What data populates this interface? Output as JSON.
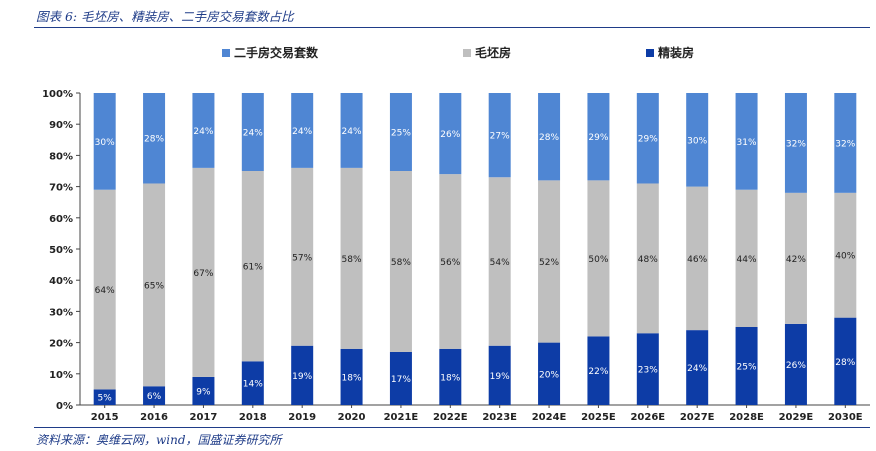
{
  "figure": {
    "title": "图表 6: 毛坯房、精装房、二手房交易套数占比",
    "source": "资料来源：奥维云网，wind，国盛证券研究所"
  },
  "colors": {
    "second_hand": "#4f86d3",
    "rough": "#bfbfbf",
    "decorated": "#0d3ca6",
    "axis": "#444444"
  },
  "chart_data": {
    "type": "bar",
    "stacked": true,
    "percent": true,
    "categories": [
      "2015",
      "2016",
      "2017",
      "2018",
      "2019",
      "2020",
      "2021E",
      "2022E",
      "2023E",
      "2024E",
      "2025E",
      "2026E",
      "2027E",
      "2028E",
      "2029E",
      "2030E"
    ],
    "ylim": [
      0,
      100
    ],
    "yticks": [
      "0%",
      "10%",
      "20%",
      "30%",
      "40%",
      "50%",
      "60%",
      "70%",
      "80%",
      "90%",
      "100%"
    ],
    "legend_position": "top",
    "series": [
      {
        "key": "decorated",
        "name": "精装房",
        "values": [
          5,
          6,
          9,
          14,
          19,
          18,
          17,
          18,
          19,
          20,
          22,
          23,
          24,
          25,
          26,
          28
        ],
        "labels": [
          "5%",
          "6%",
          "9%",
          "14%",
          "19%",
          "18%",
          "17%",
          "18%",
          "19%",
          "20%",
          "22%",
          "23%",
          "24%",
          "25%",
          "26%",
          "28%"
        ]
      },
      {
        "key": "rough",
        "name": "毛坯房",
        "values": [
          64,
          65,
          67,
          61,
          57,
          58,
          58,
          56,
          54,
          52,
          50,
          48,
          46,
          44,
          42,
          40
        ],
        "labels": [
          "64%",
          "65%",
          "67%",
          "61%",
          "57%",
          "58%",
          "58%",
          "56%",
          "54%",
          "52%",
          "50%",
          "48%",
          "46%",
          "44%",
          "42%",
          "40%"
        ]
      },
      {
        "key": "second_hand",
        "name": "二手房交易套数",
        "values": [
          30,
          28,
          24,
          24,
          24,
          24,
          25,
          26,
          27,
          28,
          29,
          29,
          30,
          31,
          32,
          32
        ],
        "labels": [
          "30%",
          "28%",
          "24%",
          "24%",
          "24%",
          "24%",
          "25%",
          "26%",
          "27%",
          "28%",
          "29%",
          "29%",
          "30%",
          "31%",
          "32%",
          "32%"
        ]
      }
    ],
    "legend_order": [
      "second_hand",
      "rough",
      "decorated"
    ]
  }
}
